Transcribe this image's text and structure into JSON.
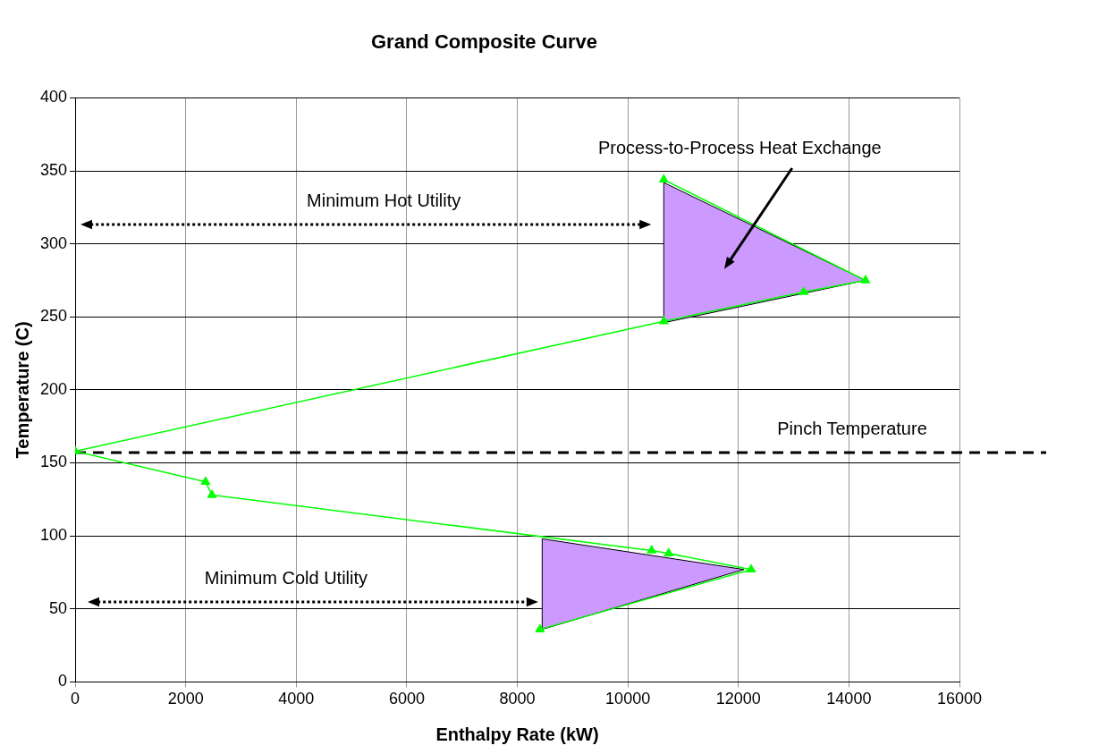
{
  "chart_data": {
    "type": "line",
    "title": "Grand Composite Curve",
    "xlabel": "Enthalpy Rate (kW)",
    "ylabel": "Temperature (C)",
    "xlim": [
      0,
      16000
    ],
    "xticks": [
      0,
      2000,
      4000,
      6000,
      8000,
      10000,
      12000,
      14000,
      16000
    ],
    "ylim": [
      0,
      400
    ],
    "yticks": [
      0,
      50,
      100,
      150,
      200,
      250,
      300,
      350,
      400
    ],
    "grid": true,
    "legend": false,
    "series": [
      {
        "marker": "triangle",
        "color": "#00ff00",
        "x": [
          10650,
          14300,
          13180,
          10650,
          0,
          2360,
          2475,
          10430,
          10740,
          12230,
          8410
        ],
        "values": [
          344,
          275,
          267,
          247,
          158,
          137,
          128,
          90,
          88,
          77,
          36
        ]
      },
      {
        "type": "area",
        "marker": "none",
        "color": "#cc99ff",
        "x": [
          10650,
          14300,
          10650,
          10650
        ],
        "values": [
          342,
          275,
          246,
          342
        ]
      },
      {
        "type": "area",
        "marker": "none",
        "color": "#cc99ff",
        "x": [
          8450,
          12100,
          8450,
          8450
        ],
        "values": [
          98,
          77,
          36,
          98
        ]
      }
    ],
    "ref_lines": [
      {
        "axis": "y",
        "value": 157,
        "label": "Pinch Temperature",
        "color": "#000000",
        "line_style": "dashed"
      }
    ],
    "annotations": [
      "Minimum Hot Utility",
      "Minimum Cold Utility",
      "Process-to-Process Heat Exchange"
    ]
  }
}
